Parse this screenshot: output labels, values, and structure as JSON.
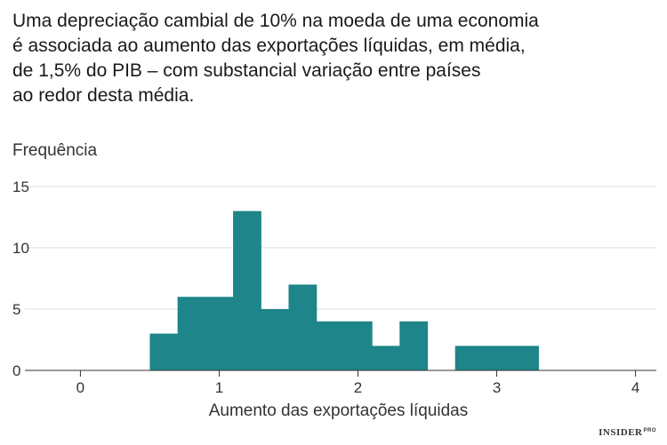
{
  "title_lines": [
    "Uma depreciação cambial de 10% na moeda de uma economia",
    "é associada ao aumento das exportações líquidas, em média,",
    "de 1,5% do PIB – com substancial variação entre países",
    "ao redor desta média."
  ],
  "brand": {
    "name": "INSIDER",
    "suffix": "PRO"
  },
  "colors": {
    "bar": "#1e858a",
    "grid": "#dddddd",
    "axis": "#333333"
  },
  "chart_data": {
    "type": "bar",
    "title": "",
    "ylabel": "Frequência",
    "xlabel": "Aumento das exportações líquidas",
    "xlim": [
      -0.4,
      4.15
    ],
    "ylim": [
      0,
      15
    ],
    "x_ticks": [
      0,
      1,
      2,
      3,
      4
    ],
    "x_tick_labels": [
      "0",
      "1",
      "2",
      "3",
      "4"
    ],
    "y_ticks": [
      0,
      5,
      10,
      15
    ],
    "y_tick_labels": [
      "0",
      "5",
      "10",
      "15"
    ],
    "grid": "horizontal",
    "bin_width": 0.2,
    "bins": [
      {
        "x0": 0.5,
        "x1": 0.7,
        "value": 3
      },
      {
        "x0": 0.7,
        "x1": 0.9,
        "value": 6
      },
      {
        "x0": 0.9,
        "x1": 1.1,
        "value": 6
      },
      {
        "x0": 1.1,
        "x1": 1.3,
        "value": 13
      },
      {
        "x0": 1.3,
        "x1": 1.5,
        "value": 5
      },
      {
        "x0": 1.5,
        "x1": 1.7,
        "value": 7
      },
      {
        "x0": 1.7,
        "x1": 1.9,
        "value": 4
      },
      {
        "x0": 1.9,
        "x1": 2.1,
        "value": 4
      },
      {
        "x0": 2.1,
        "x1": 2.3,
        "value": 2
      },
      {
        "x0": 2.3,
        "x1": 2.5,
        "value": 4
      },
      {
        "x0": 2.5,
        "x1": 2.7,
        "value": 0
      },
      {
        "x0": 2.7,
        "x1": 2.9,
        "value": 2
      },
      {
        "x0": 2.9,
        "x1": 3.1,
        "value": 2
      },
      {
        "x0": 3.1,
        "x1": 3.3,
        "value": 2
      }
    ]
  }
}
